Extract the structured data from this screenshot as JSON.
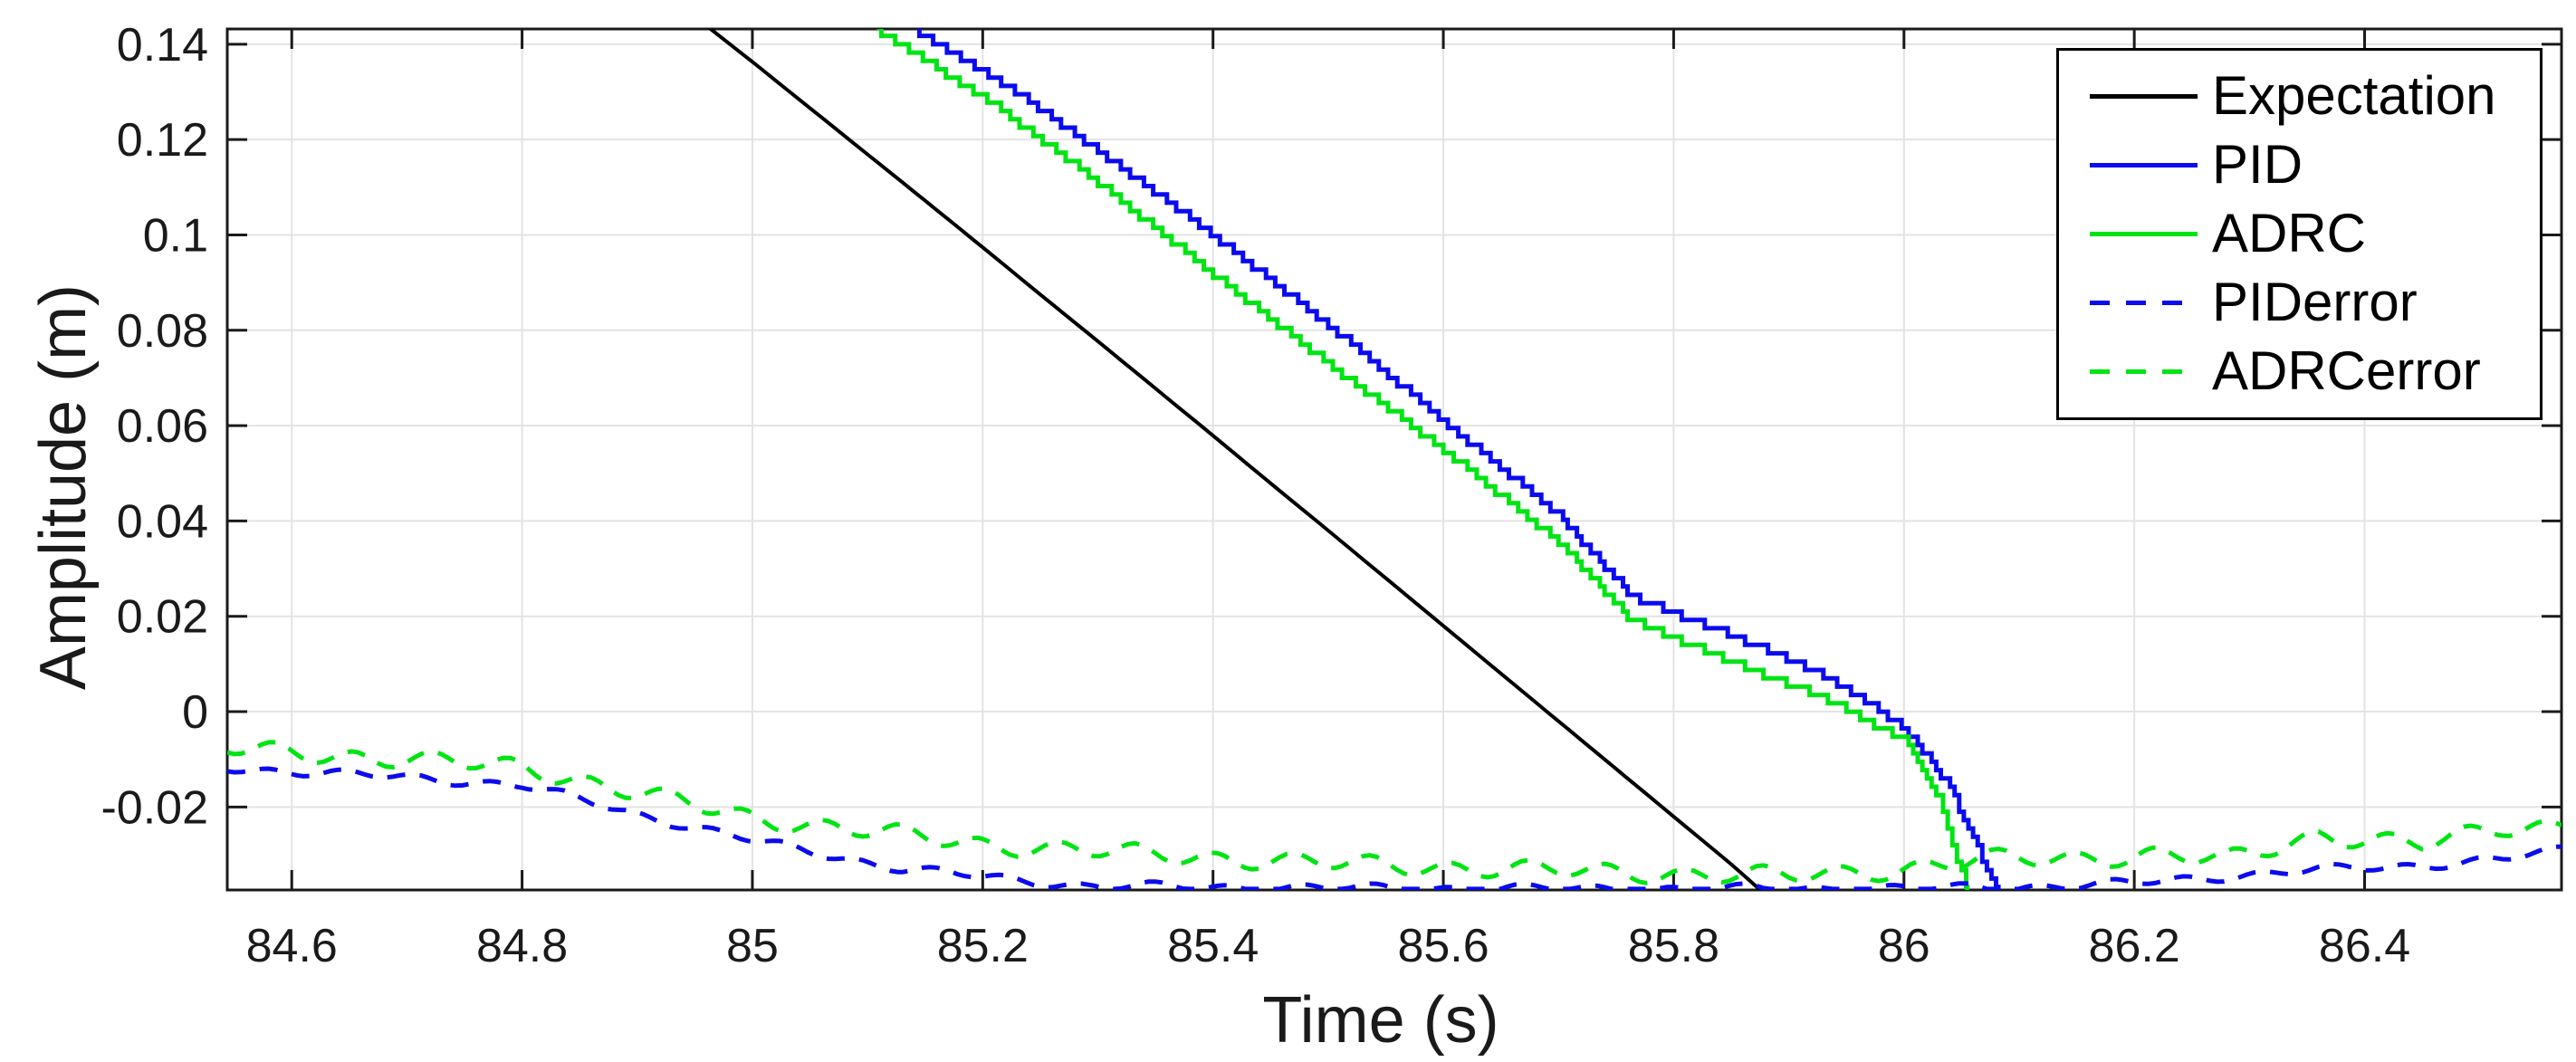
{
  "figure": {
    "background": "#ffffff",
    "axis_color": "#1a1a1a",
    "grid_color": "#e3e3e3",
    "tick_label_color": "#1a1a1a"
  },
  "legend": {
    "position": "northeast",
    "items": [
      {
        "label": "Expectation",
        "color": "#000000",
        "dash": false
      },
      {
        "label": "PID",
        "color": "#0b0bee",
        "dash": false
      },
      {
        "label": "ADRC",
        "color": "#00e414",
        "dash": false
      },
      {
        "label": "PIDerror",
        "color": "#0b0bee",
        "dash": true
      },
      {
        "label": "ADRCerror",
        "color": "#00e414",
        "dash": true
      }
    ]
  },
  "chart_data": {
    "type": "line",
    "title": "",
    "xlabel": "Time (s)",
    "ylabel": "Amplitude (m)",
    "xlim": [
      84.544,
      86.571
    ],
    "ylim": [
      -0.0374,
      0.1432
    ],
    "grid": true,
    "x_ticks": {
      "values": [
        84.6,
        84.8,
        85,
        85.2,
        85.4,
        85.6,
        85.8,
        86,
        86.2,
        86.4
      ],
      "labels": [
        "84.6",
        "84.8",
        "85",
        "85.2",
        "85.4",
        "85.6",
        "85.8",
        "86",
        "86.2",
        "86.4"
      ]
    },
    "y_ticks": {
      "values": [
        -0.02,
        0,
        0.02,
        0.04,
        0.06,
        0.08,
        0.1,
        0.12,
        0.14
      ],
      "labels": [
        "-0.02",
        "0",
        "0.02",
        "0.04",
        "0.06",
        "0.08",
        "0.1",
        "0.12",
        "0.14"
      ]
    },
    "series": [
      {
        "name": "Expectation",
        "color": "#000000",
        "style": "solid",
        "width": 4,
        "render": "smooth",
        "points": [
          [
            84.96,
            0.1439
          ],
          [
            85.0,
            0.1363
          ],
          [
            85.05,
            0.1266
          ],
          [
            85.1,
            0.1169
          ],
          [
            85.15,
            0.1072
          ],
          [
            85.2,
            0.0974
          ],
          [
            85.25,
            0.0875
          ],
          [
            85.3,
            0.0777
          ],
          [
            85.35,
            0.0678
          ],
          [
            85.4,
            0.0579
          ],
          [
            85.45,
            0.0479
          ],
          [
            85.5,
            0.038
          ],
          [
            85.55,
            0.028
          ],
          [
            85.6,
            0.018
          ],
          [
            85.65,
            0.008
          ],
          [
            85.7,
            -0.002
          ],
          [
            85.75,
            -0.012
          ],
          [
            85.8,
            -0.022
          ],
          [
            85.85,
            -0.032
          ],
          [
            85.878,
            -0.038
          ]
        ]
      },
      {
        "name": "PID",
        "color": "#0b0bee",
        "style": "solid",
        "width": 5,
        "render": "stair",
        "quantize": 0.00175,
        "points": [
          [
            85.141,
            0.1432
          ],
          [
            85.212,
            0.1328
          ],
          [
            85.3,
            0.1175
          ],
          [
            85.39,
            0.1018
          ],
          [
            85.5,
            0.0812
          ],
          [
            85.605,
            0.06
          ],
          [
            85.7,
            0.0412
          ],
          [
            85.763,
            0.0243
          ],
          [
            85.85,
            0.016
          ],
          [
            85.93,
            0.0078
          ],
          [
            86.0,
            -0.0032
          ],
          [
            86.04,
            -0.016
          ],
          [
            86.082,
            -0.038
          ]
        ]
      },
      {
        "name": "ADRC",
        "color": "#00e414",
        "style": "solid",
        "width": 5,
        "render": "stair",
        "quantize": 0.00175,
        "points": [
          [
            85.108,
            0.1432
          ],
          [
            85.212,
            0.127
          ],
          [
            85.3,
            0.111
          ],
          [
            85.348,
            0.1018
          ],
          [
            85.4,
            0.0917
          ],
          [
            85.5,
            0.073
          ],
          [
            85.605,
            0.054
          ],
          [
            85.7,
            0.0355
          ],
          [
            85.763,
            0.0192
          ],
          [
            85.85,
            0.0105
          ],
          [
            85.93,
            0.003
          ],
          [
            86.0,
            -0.0061
          ],
          [
            86.03,
            -0.018
          ],
          [
            86.055,
            -0.038
          ]
        ]
      },
      {
        "name": "PIDerror",
        "color": "#0b0bee",
        "style": "dashed",
        "width": 5,
        "render": "wiggle",
        "wiggle": {
          "amp": 0.0007,
          "period": 0.064,
          "amp2": 0.0004,
          "period2": 0.17
        },
        "points": [
          [
            84.544,
            -0.0118
          ],
          [
            84.7,
            -0.0138
          ],
          [
            84.8,
            -0.0154
          ],
          [
            84.9,
            -0.0215
          ],
          [
            85.0,
            -0.027
          ],
          [
            85.13,
            -0.033
          ],
          [
            85.29,
            -0.0366
          ],
          [
            85.5,
            -0.037
          ],
          [
            85.8,
            -0.0372
          ],
          [
            86.0,
            -0.0371
          ],
          [
            86.1,
            -0.0368
          ],
          [
            86.2,
            -0.036
          ],
          [
            86.28,
            -0.0345
          ],
          [
            86.36,
            -0.0332
          ],
          [
            86.45,
            -0.0322
          ],
          [
            86.52,
            -0.031
          ],
          [
            86.571,
            -0.029
          ]
        ]
      },
      {
        "name": "ADRCerror",
        "color": "#00e414",
        "style": "dashed",
        "width": 5,
        "render": "wiggle",
        "wiggle": {
          "amp": 0.0016,
          "period": 0.068,
          "amp2": 0.0006,
          "period2": 0.19
        },
        "points": [
          [
            84.544,
            -0.0078
          ],
          [
            84.7,
            -0.01
          ],
          [
            84.8,
            -0.0116
          ],
          [
            84.9,
            -0.017
          ],
          [
            85.0,
            -0.0223
          ],
          [
            85.1,
            -0.025
          ],
          [
            85.2,
            -0.0278
          ],
          [
            85.35,
            -0.03
          ],
          [
            85.5,
            -0.0318
          ],
          [
            85.65,
            -0.033
          ],
          [
            85.8,
            -0.034
          ],
          [
            85.9,
            -0.0345
          ],
          [
            86.0,
            -0.033
          ],
          [
            86.07,
            -0.031
          ],
          [
            86.15,
            -0.0307
          ],
          [
            86.22,
            -0.03
          ],
          [
            86.28,
            -0.0312
          ],
          [
            86.36,
            -0.0258
          ],
          [
            86.45,
            -0.028
          ],
          [
            86.52,
            -0.0242
          ],
          [
            86.571,
            -0.0238
          ]
        ]
      }
    ]
  }
}
